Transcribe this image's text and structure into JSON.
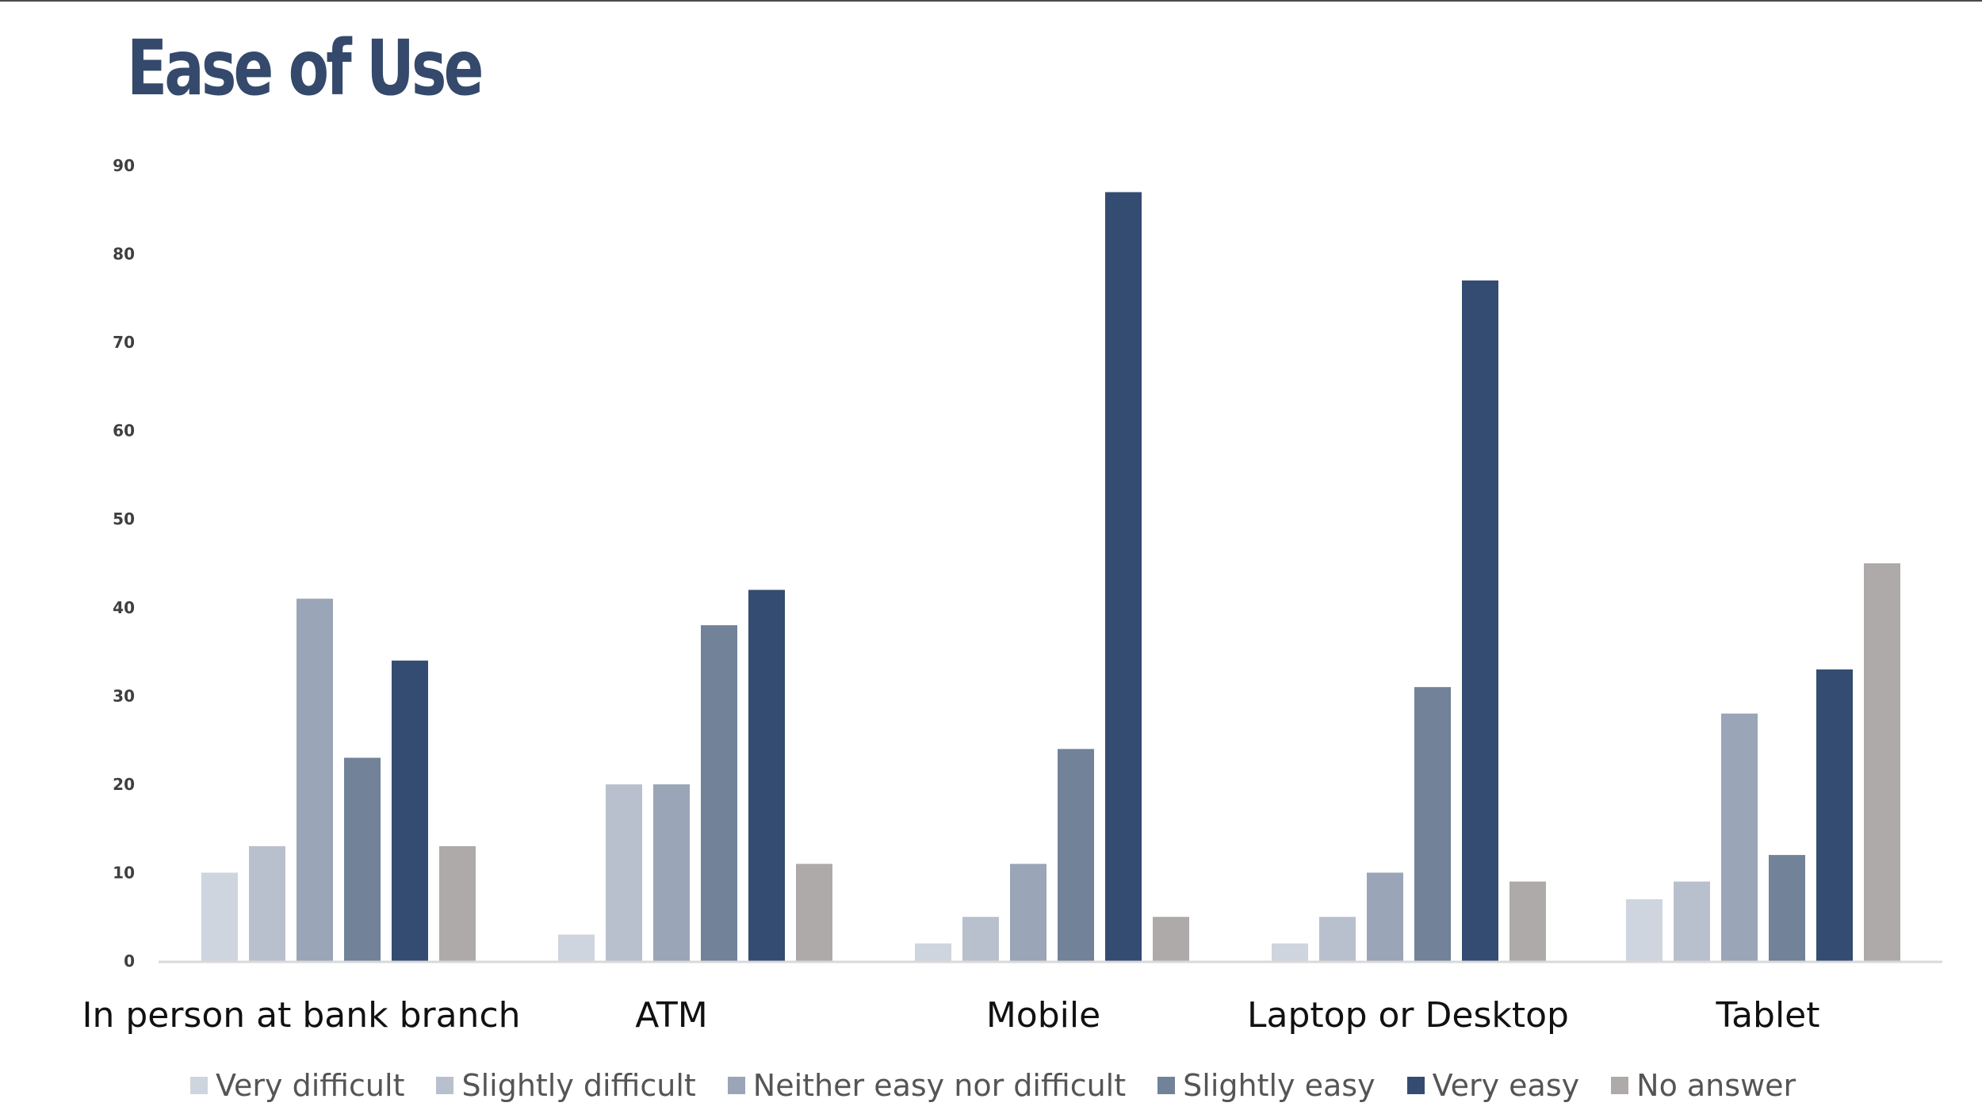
{
  "title": "Ease of Use",
  "colors": {
    "title": "#34496b",
    "axis_line": "#d9d9d9"
  },
  "chart_data": {
    "type": "bar",
    "categories": [
      "In person at bank branch",
      "ATM",
      "Mobile",
      "Laptop or Desktop",
      "Tablet"
    ],
    "ylim": [
      0,
      90
    ],
    "yticks": [
      0,
      10,
      20,
      30,
      40,
      50,
      60,
      70,
      80,
      90
    ],
    "grid": false,
    "legend_position": "bottom",
    "series": [
      {
        "name": "Very difficult",
        "color": "#cfd5de",
        "values": [
          10,
          3,
          2,
          2,
          7
        ]
      },
      {
        "name": "Slightly difficult",
        "color": "#b9c0cd",
        "values": [
          13,
          20,
          5,
          5,
          9
        ]
      },
      {
        "name": "Neither easy nor difficult",
        "color": "#9aa5b7",
        "values": [
          41,
          20,
          11,
          10,
          28
        ]
      },
      {
        "name": "Slightly easy",
        "color": "#718299",
        "values": [
          23,
          38,
          24,
          31,
          12
        ]
      },
      {
        "name": "Very easy",
        "color": "#344c71",
        "values": [
          34,
          42,
          87,
          77,
          33
        ]
      },
      {
        "name": "No answer",
        "color": "#aeaaaa",
        "values": [
          13,
          11,
          5,
          9,
          45
        ]
      }
    ]
  }
}
